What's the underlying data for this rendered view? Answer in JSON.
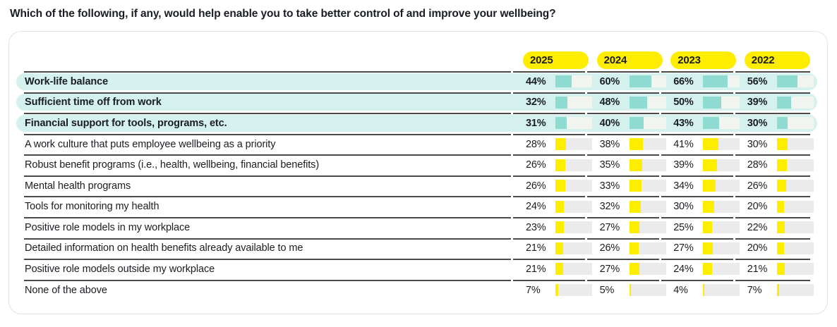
{
  "title": "Which of the following, if any, would help enable you to take better control of and improve your wellbeing?",
  "colors": {
    "yellow": "#FFED00",
    "teal": "#8FDAD1",
    "hlbg": "#D5F1EE",
    "track": "#EBEBEB",
    "trackhl": "#F2F4EF",
    "sep": "#4A4A4A",
    "border": "#E3E3E3",
    "text": "#1A1D21"
  },
  "chart_data": {
    "type": "table",
    "title": "Which of the following, if any, would help enable you to take better control of and improve your wellbeing?",
    "columns": [
      "2025",
      "2024",
      "2023",
      "2022"
    ],
    "unit": "%",
    "bar_max": 100,
    "layout_hints": {
      "cell_visual": "percent label + mini horizontal bar scaled 0-100",
      "highlight_style": "top three rows shown with teal pill background, bold text and teal bars; remaining rows use yellow bars",
      "header_style": "yellow pill badges for year columns",
      "grid": "dark horizontal separators between rows, small gaps at column boundaries"
    },
    "rows": [
      {
        "label": "Work-life balance",
        "values": [
          44,
          60,
          66,
          56
        ],
        "highlighted": true
      },
      {
        "label": "Sufficient time off from work",
        "values": [
          32,
          48,
          50,
          39
        ],
        "highlighted": true
      },
      {
        "label": "Financial support for tools, programs, etc.",
        "values": [
          31,
          40,
          43,
          30
        ],
        "highlighted": true
      },
      {
        "label": "A work culture that puts employee wellbeing as a priority",
        "values": [
          28,
          38,
          41,
          30
        ],
        "highlighted": false
      },
      {
        "label": "Robust benefit programs (i.e., health, wellbeing, financial benefits)",
        "values": [
          26,
          35,
          39,
          28
        ],
        "highlighted": false
      },
      {
        "label": "Mental health programs",
        "values": [
          26,
          33,
          34,
          26
        ],
        "highlighted": false
      },
      {
        "label": "Tools for monitoring my health",
        "values": [
          24,
          32,
          30,
          20
        ],
        "highlighted": false
      },
      {
        "label": "Positive role models in my workplace",
        "values": [
          23,
          27,
          25,
          22
        ],
        "highlighted": false
      },
      {
        "label": "Detailed information on health benefits already available to me",
        "values": [
          21,
          26,
          27,
          20
        ],
        "highlighted": false
      },
      {
        "label": "Positive role models outside my workplace",
        "values": [
          21,
          27,
          24,
          21
        ],
        "highlighted": false
      },
      {
        "label": "None of the above",
        "values": [
          7,
          5,
          4,
          7
        ],
        "highlighted": false
      }
    ]
  }
}
